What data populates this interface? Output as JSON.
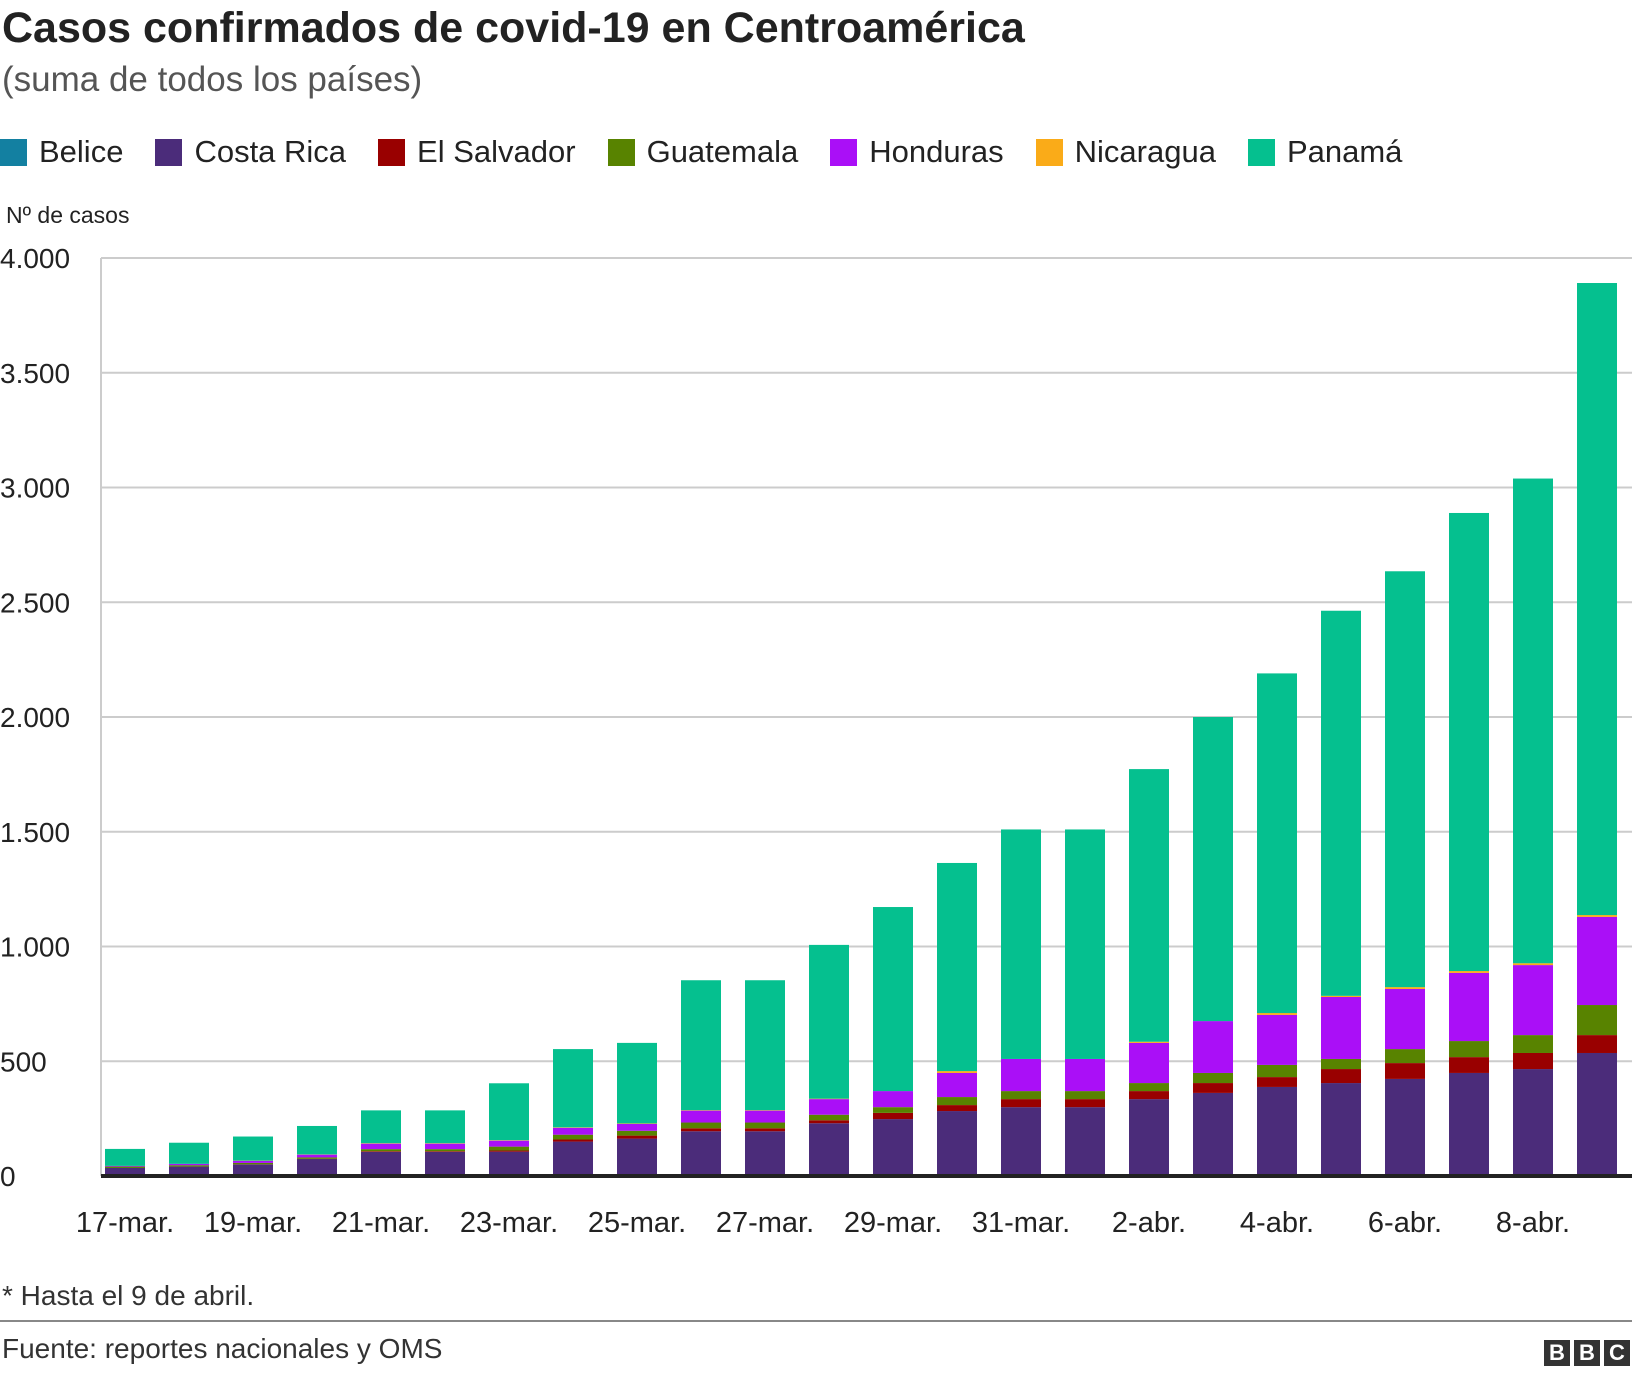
{
  "title": "Casos confirmados de covid-19 en Centroamérica",
  "subtitle": "(suma de todos los países)",
  "footnote": "* Hasta el 9 de abril.",
  "source": "Fuente: reportes nacionales y OMS",
  "logo": "BBC",
  "chart_data": {
    "type": "bar",
    "stacked": true,
    "title": "Casos confirmados de covid-19 en Centroamérica",
    "ylabel": "Nº de casos",
    "xlabel": "",
    "ylim": [
      0,
      4000
    ],
    "yticks": [
      0,
      500,
      1000,
      1500,
      2000,
      2500,
      3000,
      3500,
      4000
    ],
    "ytick_labels": [
      "0",
      "500",
      "1.000",
      "1.500",
      "2.000",
      "2.500",
      "3.000",
      "3.500",
      "4.000"
    ],
    "grid": true,
    "legend_position": "top",
    "categories": [
      "17-mar.",
      "18-mar.",
      "19-mar.",
      "20-mar.",
      "21-mar.",
      "22-mar.",
      "23-mar.",
      "24-mar.",
      "25-mar.",
      "26-mar.",
      "27-mar.",
      "28-mar.",
      "29-mar.",
      "30-mar.",
      "31-mar.",
      "1-abr.",
      "2-abr.",
      "3-abr.",
      "4-abr.",
      "5-abr.",
      "6-abr.",
      "7-abr.",
      "8-abr.",
      "9-abr."
    ],
    "xtick_labels": [
      "17-mar.",
      "19-mar.",
      "21-mar.",
      "23-mar.",
      "25-mar.",
      "27-mar.",
      "29-mar.",
      "31-mar.",
      "2-abr.",
      "4-abr.",
      "6-abr.",
      "8-abr."
    ],
    "series": [
      {
        "name": "Belice",
        "color": "#1380A1",
        "values": [
          0,
          0,
          0,
          0,
          0,
          0,
          0,
          0,
          0,
          0,
          0,
          0,
          0,
          0,
          0,
          0,
          0,
          0,
          0,
          0,
          0,
          0,
          0,
          0
        ]
      },
      {
        "name": "Costa Rica",
        "color": "#4B2C7A",
        "values": [
          35,
          41,
          50,
          74,
          105,
          105,
          106,
          150,
          163,
          195,
          195,
          230,
          248,
          283,
          300,
          300,
          335,
          362,
          388,
          405,
          423,
          449,
          466,
          536
        ]
      },
      {
        "name": "El Salvador",
        "color": "#990000",
        "values": [
          0,
          0,
          1,
          1,
          3,
          3,
          5,
          9,
          13,
          13,
          13,
          13,
          27,
          26,
          35,
          35,
          35,
          43,
          43,
          61,
          69,
          69,
          70,
          78
        ]
      },
      {
        "name": "Guatemala",
        "color": "#588300",
        "values": [
          6,
          6,
          6,
          6,
          9,
          9,
          17,
          21,
          21,
          25,
          25,
          24,
          25,
          35,
          35,
          35,
          35,
          44,
          53,
          44,
          61,
          70,
          78,
          131
        ]
      },
      {
        "name": "Honduras",
        "color": "#AA0FF7",
        "values": [
          3,
          6,
          9,
          12,
          24,
          24,
          26,
          30,
          30,
          52,
          52,
          68,
          70,
          105,
          140,
          140,
          175,
          226,
          218,
          270,
          262,
          297,
          305,
          384
        ]
      },
      {
        "name": "Nicaragua",
        "color": "#FAAB18",
        "values": [
          0,
          0,
          1,
          1,
          2,
          2,
          2,
          2,
          2,
          2,
          2,
          2,
          0,
          8,
          0,
          0,
          5,
          0,
          8,
          5,
          8,
          8,
          8,
          8
        ]
      },
      {
        "name": "Panamá",
        "color": "#05C08F",
        "values": [
          74,
          92,
          105,
          124,
          143,
          143,
          248,
          341,
          351,
          566,
          566,
          670,
          802,
          907,
          1000,
          1000,
          1188,
          1325,
          1480,
          1678,
          1812,
          1996,
          2112,
          2754
        ]
      }
    ]
  }
}
